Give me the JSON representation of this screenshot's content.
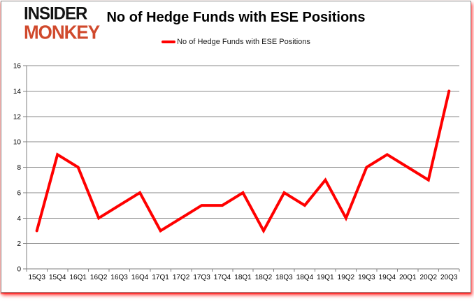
{
  "logo": {
    "line1": "INSIDER",
    "line2": "MONKEY"
  },
  "header": {
    "title": "No of Hedge Funds with ESE Positions"
  },
  "legend": {
    "label": "No of Hedge Funds with ESE Positions",
    "marker_color": "#ff0000"
  },
  "colors": {
    "line": "#ff0000",
    "grid": "#898989",
    "axis": "#7f7f7f",
    "text": "#000000",
    "logo_red": "#d0492c",
    "card_border": "#8c8c8c",
    "glow_red": "#ff0000"
  },
  "chart_data": {
    "type": "line",
    "title": "No of Hedge Funds with ESE Positions",
    "series_name": "No of Hedge Funds with ESE Positions",
    "categories": [
      "15Q3",
      "15Q4",
      "16Q1",
      "16Q2",
      "16Q3",
      "16Q4",
      "17Q1",
      "17Q2",
      "17Q3",
      "17Q4",
      "18Q1",
      "18Q2",
      "18Q3",
      "18Q4",
      "19Q1",
      "19Q2",
      "19Q3",
      "19Q4",
      "20Q1",
      "20Q2",
      "20Q3"
    ],
    "values": [
      3,
      9,
      8,
      4,
      5,
      6,
      3,
      4,
      5,
      5,
      6,
      3,
      6,
      5,
      7,
      4,
      8,
      9,
      8,
      7,
      14
    ],
    "xlabel": "",
    "ylabel": "",
    "ylim": [
      0,
      16
    ],
    "ytick_step": 2,
    "grid": true,
    "legend_position": "top",
    "line_color": "#ff0000",
    "line_width": 4
  }
}
